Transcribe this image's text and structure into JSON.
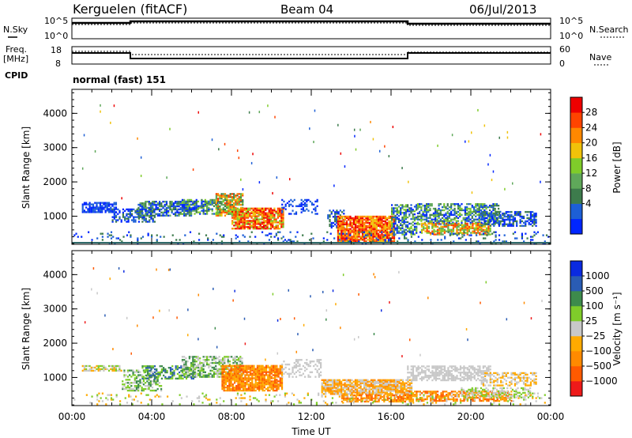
{
  "header": {
    "station": "Kerguelen (fitACF)",
    "beam": "Beam 04",
    "date": "06/Jul/2013"
  },
  "panels": {
    "nsky_label": "N.Sky",
    "nsearch_label": "N.Search",
    "freq_label": "Freq.",
    "freq_unit": "[MHz]",
    "nave_label": "Nave",
    "cpid_label": "CPID",
    "cpid_value": "normal (fast) 151",
    "noise_left_ticks": [
      "10^5",
      "10^0"
    ],
    "noise_right_ticks": [
      "10^5",
      "10^0"
    ],
    "freq_left_ticks": [
      "18",
      "8"
    ],
    "nave_right_ticks": [
      "60",
      "0"
    ]
  },
  "colors": {
    "power_scale": [
      "#0026ff",
      "#1d5fd6",
      "#3d7b4c",
      "#5fa85a",
      "#7fcc2a",
      "#f0c20a",
      "#ff8800",
      "#ff4400",
      "#ee0000"
    ],
    "velocity_scale": [
      "#ee1a1a",
      "#ff5a00",
      "#ff8a00",
      "#ffaa00",
      "#c8c8c8",
      "#7fcc2a",
      "#3d8b4c",
      "#2a5cb4",
      "#0a2ae0"
    ]
  },
  "chart_data": [
    {
      "type": "heatmap",
      "name": "power",
      "ylabel": "Slant Range [km]",
      "x_ticks": [
        "00:00",
        "04:00",
        "08:00",
        "12:00",
        "16:00",
        "20:00",
        "00:00"
      ],
      "y_ticks": [
        1000,
        2000,
        3000,
        4000
      ],
      "ylim": [
        180,
        4700
      ],
      "xlim_hours": [
        0,
        24
      ],
      "colorbar_label": "Power [dB]",
      "colorbar_ticks": [
        "28",
        "24",
        "20",
        "16",
        "12",
        "8",
        "4"
      ]
    },
    {
      "type": "heatmap",
      "name": "velocity",
      "ylabel": "Slant Range [km]",
      "xlabel": "Time UT",
      "x_ticks": [
        "00:00",
        "04:00",
        "08:00",
        "12:00",
        "16:00",
        "20:00",
        "00:00"
      ],
      "y_ticks": [
        1000,
        2000,
        3000,
        4000
      ],
      "ylim": [
        180,
        4700
      ],
      "xlim_hours": [
        0,
        24
      ],
      "colorbar_label": "Velocity [m s⁻¹]",
      "colorbar_ticks": [
        "1000",
        "500",
        "100",
        "25",
        "−25",
        "−100",
        "−500",
        "−1000"
      ]
    }
  ]
}
